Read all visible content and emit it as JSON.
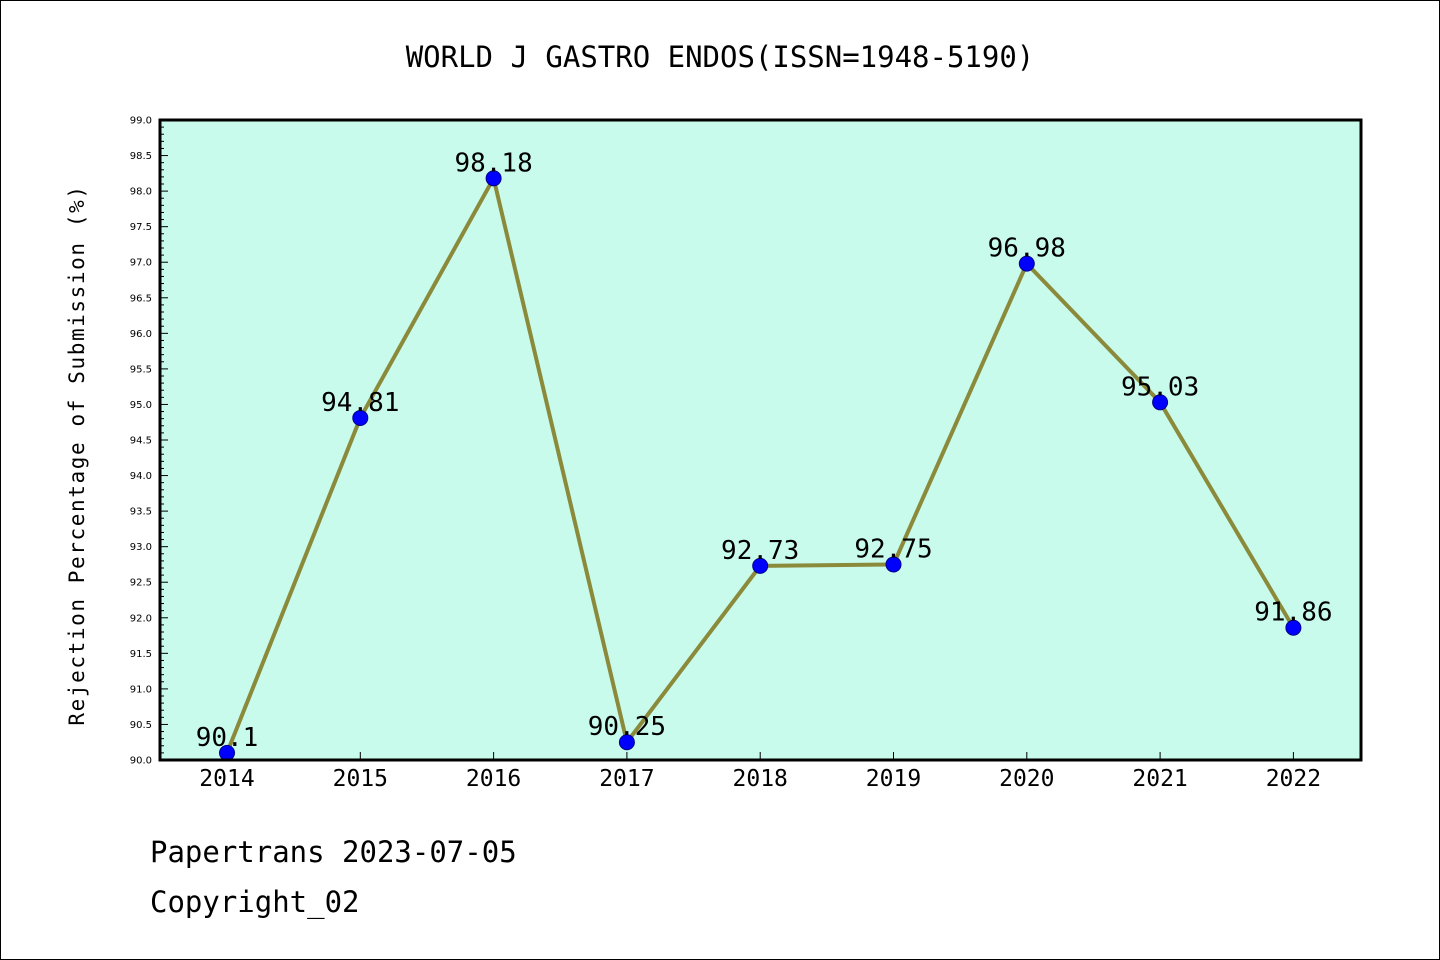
{
  "chart_data": {
    "type": "line",
    "title": "WORLD J GASTRO ENDOS(ISSN=1948-5190)",
    "xlabel": "",
    "ylabel": "Rejection Percentage of Submission (%)",
    "categories": [
      "2014",
      "2015",
      "2016",
      "2017",
      "2018",
      "2019",
      "2020",
      "2021",
      "2022"
    ],
    "values": [
      90.1,
      94.81,
      98.18,
      90.25,
      92.73,
      92.75,
      96.98,
      95.03,
      91.86
    ],
    "data_labels": [
      "90.1",
      "94.81",
      "98.18",
      "90.25",
      "92.73",
      "92.75",
      "96.98",
      "95.03",
      "91.86"
    ],
    "ylim": [
      90.0,
      99.0
    ],
    "yticks": [
      "90.0",
      "90.5",
      "91.0",
      "91.5",
      "92.0",
      "92.5",
      "93.0",
      "93.5",
      "94.0",
      "94.5",
      "95.0",
      "95.5",
      "96.0",
      "96.5",
      "97.0",
      "97.5",
      "98.0",
      "98.5",
      "99.0"
    ],
    "grid": false,
    "colors": {
      "plot_background": "#c8fbec",
      "line": "#8b8a3b",
      "marker": "#0000ff"
    }
  },
  "footer": {
    "line1": "Papertrans 2023-07-05",
    "line2": "Copyright_02"
  }
}
